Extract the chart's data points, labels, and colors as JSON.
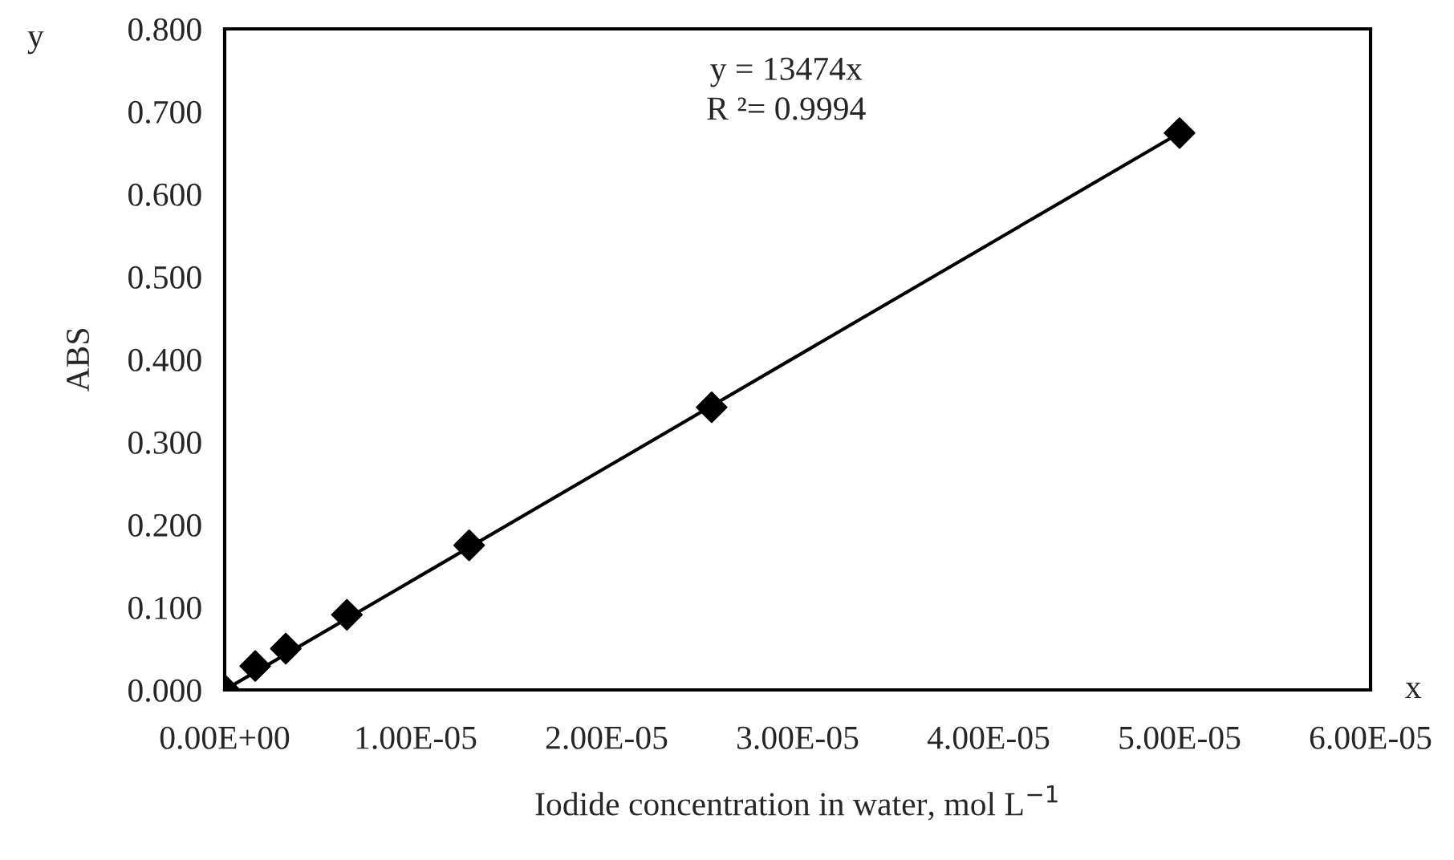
{
  "chart_data": {
    "type": "scatter",
    "xlabel": "Iodide concentration in water, mol L$^{−1}$",
    "ylabel": "ABS",
    "series": [
      {
        "color": "#000000",
        "marker": "diamond",
        "x": [
          0,
          1.6e-06,
          3.2e-06,
          6.4e-06,
          1.28e-05,
          2.55e-05,
          5e-05
        ],
        "values": [
          0.0,
          0.029,
          0.05,
          0.091,
          0.175,
          0.342,
          0.674
        ]
      },
      {
        "type": "line",
        "color": "#000000",
        "line_style": "solid",
        "x": [
          0,
          5e-05
        ],
        "values": [
          0.0,
          0.674
        ]
      }
    ],
    "xlim": [
      0,
      6e-05
    ],
    "xticks": [
      {
        "value": 0,
        "label": "0.00E+00"
      },
      {
        "value": 1e-05,
        "label": "1.00E-05"
      },
      {
        "value": 2e-05,
        "label": "2.00E-05"
      },
      {
        "value": 3e-05,
        "label": "3.00E-05"
      },
      {
        "value": 4e-05,
        "label": "4.00E-05"
      },
      {
        "value": 5e-05,
        "label": "5.00E-05"
      },
      {
        "value": 6e-05,
        "label": "6.00E-05"
      }
    ],
    "ylim": [
      0,
      0.8
    ],
    "yticks": [
      {
        "value": 0,
        "label": "0.000"
      },
      {
        "value": 0.1,
        "label": "0.100"
      },
      {
        "value": 0.2,
        "label": "0.200"
      },
      {
        "value": 0.3,
        "label": "0.300"
      },
      {
        "value": 0.4,
        "label": "0.400"
      },
      {
        "value": 0.5,
        "label": "0.500"
      },
      {
        "value": 0.6,
        "label": "0.600"
      },
      {
        "value": 0.7,
        "label": "0.700"
      },
      {
        "value": 0.8,
        "label": "0.800"
      }
    ],
    "grid": false,
    "legend": false,
    "annotations": [
      "y = 13474x",
      "R ²= 0.9994",
      "y",
      "x"
    ]
  }
}
